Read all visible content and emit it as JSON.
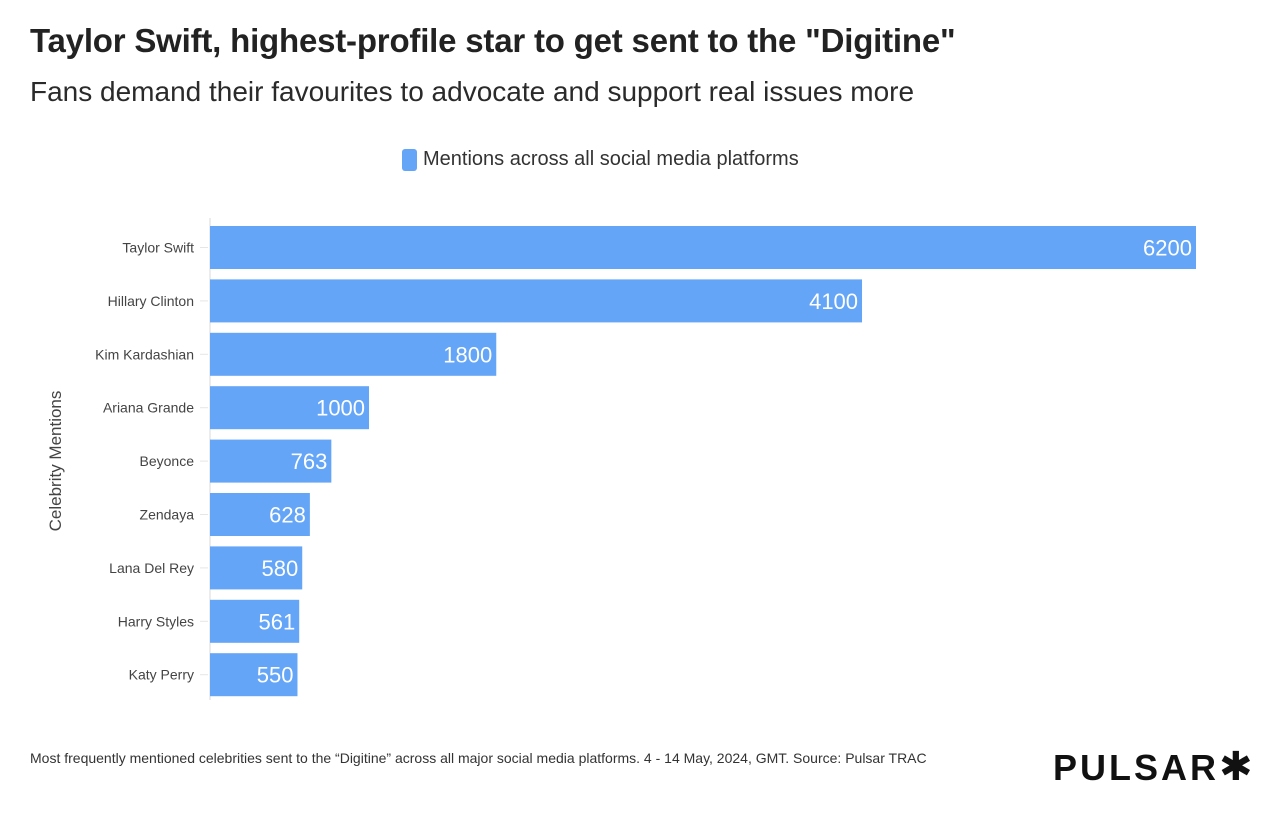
{
  "title": "Taylor Swift, highest-profile star to get sent to the \"Digitine\"",
  "subtitle": "Fans demand their favourites to advocate and support real issues more",
  "footer": "Most frequently mentioned celebrities sent to the “Digitine” across all major social media platforms. 4 - 14 May, 2024, GMT. Source: Pulsar TRAC",
  "logo": "PULSAR✱",
  "chart_data": {
    "type": "bar",
    "orientation": "horizontal",
    "categories": [
      "Taylor Swift",
      "Hillary Clinton",
      "Kim Kardashian",
      "Ariana Grande",
      "Beyonce",
      "Zendaya",
      "Lana Del Rey",
      "Harry Styles",
      "Katy Perry"
    ],
    "series": [
      {
        "name": "Mentions across all social media platforms",
        "values": [
          6200,
          4100,
          1800,
          1000,
          763,
          628,
          580,
          561,
          550
        ],
        "color": "#64a5f7"
      }
    ],
    "ylabel": "Celebrity Mentions",
    "xlabel": "",
    "xlim": [
      0,
      6200
    ],
    "grid": false,
    "legend": "top-center",
    "data_labels": true
  }
}
